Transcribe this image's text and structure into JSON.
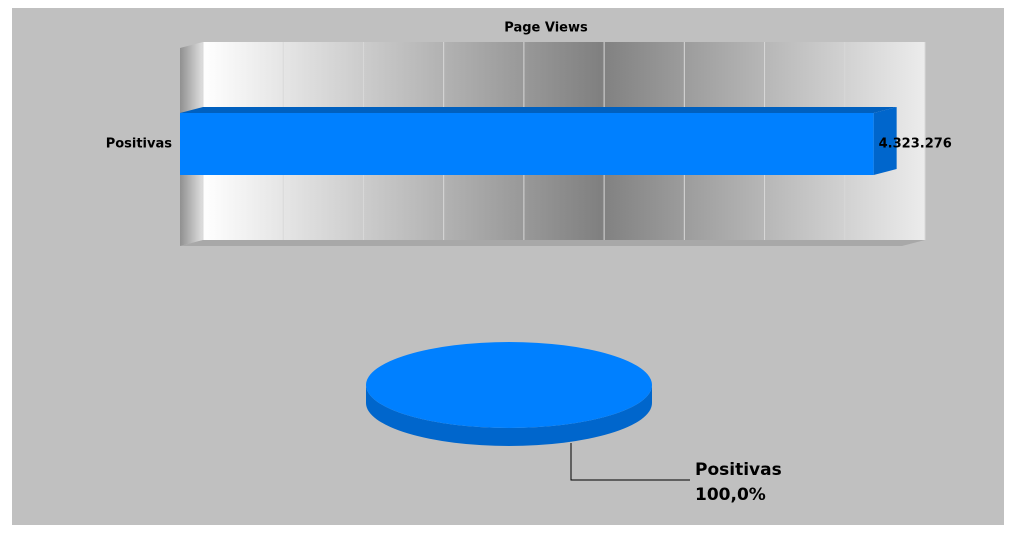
{
  "chart_data": [
    {
      "type": "bar",
      "title": "Page Views",
      "orientation": "horizontal",
      "categories": [
        "Positivas"
      ],
      "values": [
        4323276
      ],
      "value_labels": [
        "4.323.276"
      ],
      "color": "#0080ff",
      "xlim": [
        0,
        4500000
      ],
      "xticks": [
        0,
        500000,
        1000000,
        1500000,
        2000000,
        2500000,
        3000000,
        3500000,
        4000000,
        4500000
      ],
      "grid": true
    },
    {
      "type": "pie",
      "categories": [
        "Positivas"
      ],
      "values": [
        100
      ],
      "value_labels": [
        "100,0%"
      ],
      "color": "#0080ff"
    }
  ]
}
